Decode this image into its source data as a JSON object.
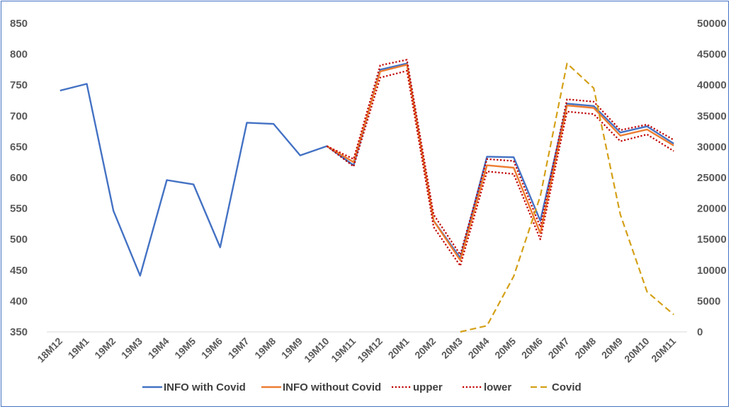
{
  "chart_data": {
    "type": "line",
    "title": "",
    "xlabel": "",
    "ylabel": "",
    "categories": [
      "18M12",
      "19M1",
      "19M2",
      "19M3",
      "19M4",
      "19M5",
      "19M6",
      "19M7",
      "19M8",
      "19M9",
      "19M10",
      "19M11",
      "19M12",
      "20M1",
      "20M2",
      "20M3",
      "20M4",
      "20M5",
      "20M6",
      "20M7",
      "20M8",
      "20M9",
      "20M10",
      "20M11"
    ],
    "ylim_left": [
      350,
      850
    ],
    "yticks_left": [
      350,
      400,
      450,
      500,
      550,
      600,
      650,
      700,
      750,
      800,
      850
    ],
    "ylim_right": [
      0,
      50000
    ],
    "yticks_right": [
      0,
      5000,
      10000,
      15000,
      20000,
      25000,
      30000,
      35000,
      40000,
      45000,
      50000
    ],
    "grid": false,
    "legend_position": "bottom",
    "series": [
      {
        "name": "INFO with Covid",
        "axis": "left",
        "color": "#4472c4",
        "style": "solid",
        "values": [
          741,
          752,
          546,
          441,
          596,
          589,
          487,
          689,
          687,
          636,
          651,
          620,
          775,
          785,
          530,
          470,
          634,
          633,
          530,
          720,
          716,
          673,
          683,
          655
        ]
      },
      {
        "name": "INFO without Covid",
        "axis": "left",
        "color": "#ed7d31",
        "style": "solid",
        "values": [
          null,
          null,
          null,
          null,
          null,
          null,
          null,
          null,
          null,
          null,
          651,
          625,
          772,
          783,
          530,
          466,
          620,
          616,
          510,
          717,
          713,
          668,
          678,
          652
        ]
      },
      {
        "name": "upper",
        "axis": "left",
        "color": "#c00000",
        "style": "dotted",
        "values": [
          null,
          null,
          null,
          null,
          null,
          null,
          null,
          null,
          null,
          null,
          651,
          630,
          782,
          791,
          540,
          475,
          630,
          627,
          520,
          727,
          723,
          677,
          686,
          661
        ]
      },
      {
        "name": "lower",
        "axis": "left",
        "color": "#c00000",
        "style": "dotted",
        "values": [
          null,
          null,
          null,
          null,
          null,
          null,
          null,
          null,
          null,
          null,
          651,
          618,
          762,
          773,
          520,
          457,
          610,
          606,
          500,
          707,
          703,
          659,
          670,
          643
        ]
      },
      {
        "name": "Covid",
        "axis": "right",
        "color": "#d4a017",
        "style": "dashed",
        "values": [
          null,
          null,
          null,
          null,
          null,
          null,
          null,
          null,
          null,
          null,
          null,
          null,
          null,
          null,
          null,
          0,
          1000,
          9000,
          22000,
          43500,
          39500,
          19000,
          6500,
          2800
        ]
      }
    ]
  }
}
